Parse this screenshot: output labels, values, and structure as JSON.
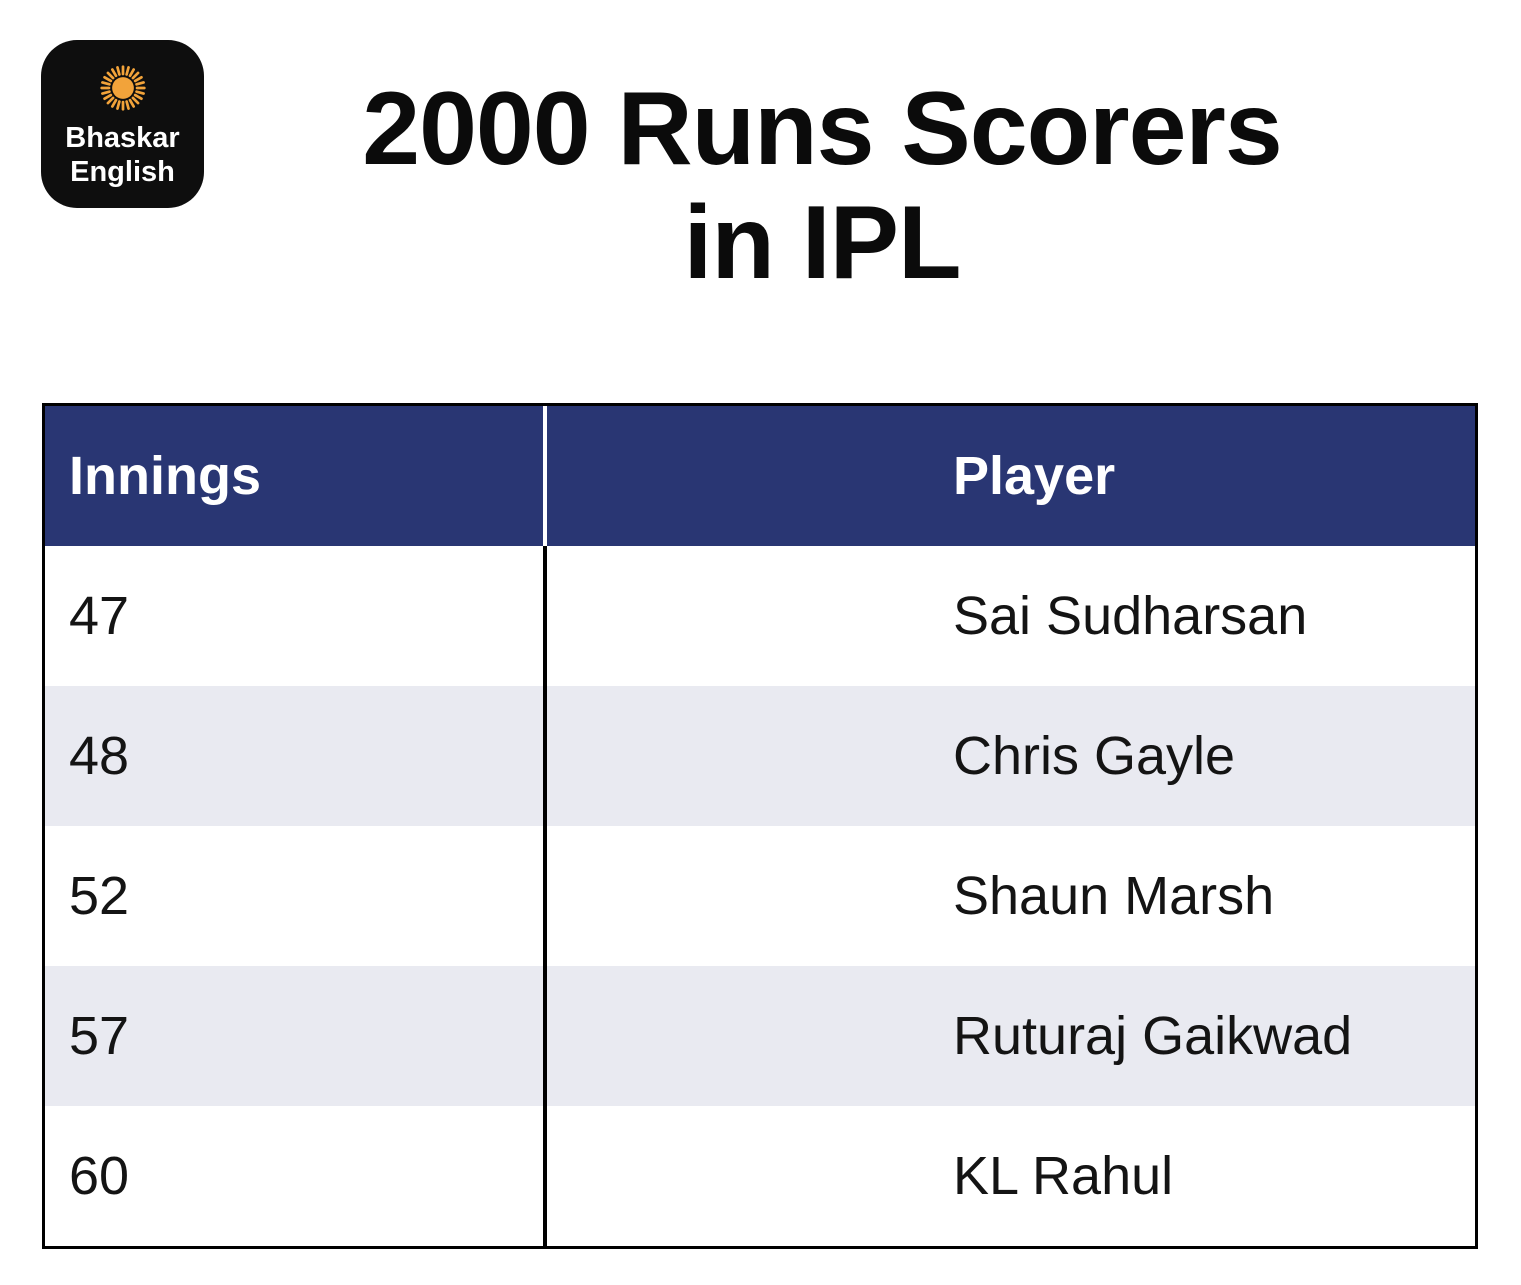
{
  "logo": {
    "line1": "Bhaskar",
    "line2": "English"
  },
  "title": {
    "line1": "2000 Runs Scorers",
    "line2": "in IPL"
  },
  "table": {
    "headers": {
      "innings": "Innings",
      "player": "Player"
    },
    "rows": [
      {
        "innings": "47",
        "player": "Sai Sudharsan"
      },
      {
        "innings": "48",
        "player": "Chris Gayle"
      },
      {
        "innings": "52",
        "player": "Shaun Marsh"
      },
      {
        "innings": "57",
        "player": "Ruturaj Gaikwad"
      },
      {
        "innings": "60",
        "player": "KL Rahul"
      }
    ]
  },
  "chart_data": {
    "type": "table",
    "title": "2000 Runs Scorers in IPL",
    "columns": [
      "Innings",
      "Player"
    ],
    "rows": [
      [
        47,
        "Sai Sudharsan"
      ],
      [
        48,
        "Chris Gayle"
      ],
      [
        52,
        "Shaun Marsh"
      ],
      [
        57,
        "Ruturaj Gaikwad"
      ],
      [
        60,
        "KL Rahul"
      ]
    ]
  },
  "colors": {
    "header_bg": "#293673",
    "row_alt_bg": "#e9eaf1",
    "table_border": "#000000",
    "logo_bg": "#0e0e0e",
    "sun": "#f2a33a",
    "title_text": "#0b0b0b",
    "header_text": "#ffffff"
  }
}
